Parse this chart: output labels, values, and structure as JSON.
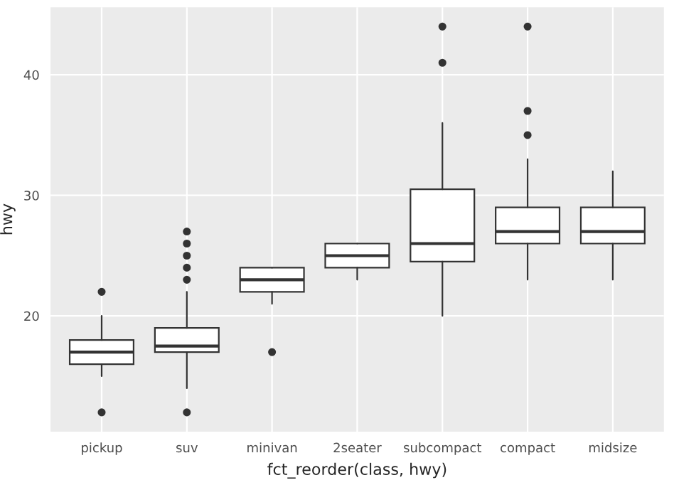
{
  "chart_data": {
    "type": "box",
    "xlabel": "fct_reorder(class, hwy)",
    "ylabel": "hwy",
    "categories": [
      "pickup",
      "suv",
      "minivan",
      "2seater",
      "subcompact",
      "compact",
      "midsize"
    ],
    "boxes": [
      {
        "low": 15,
        "q1": 16,
        "median": 17,
        "q3": 18,
        "high": 20,
        "outliers": [
          12,
          22
        ]
      },
      {
        "low": 14,
        "q1": 17,
        "median": 17.5,
        "q3": 19,
        "high": 22,
        "outliers": [
          12,
          23,
          24,
          25,
          26,
          27
        ]
      },
      {
        "low": 21,
        "q1": 22,
        "median": 23,
        "q3": 24,
        "high": 24,
        "outliers": [
          17
        ]
      },
      {
        "low": 23,
        "q1": 24,
        "median": 25,
        "q3": 26,
        "high": 26
      },
      {
        "low": 20,
        "q1": 24.5,
        "median": 26,
        "q3": 30.5,
        "high": 36,
        "outliers": [
          41,
          44
        ]
      },
      {
        "low": 23,
        "q1": 26,
        "median": 27,
        "q3": 29,
        "high": 33,
        "outliers": [
          35,
          37,
          44
        ]
      },
      {
        "low": 23,
        "q1": 26,
        "median": 27,
        "q3": 29,
        "high": 32
      }
    ],
    "ylim": [
      10.4,
      45.6
    ],
    "yticks": [
      20,
      30,
      40
    ],
    "grid": true,
    "color": "#333333"
  }
}
